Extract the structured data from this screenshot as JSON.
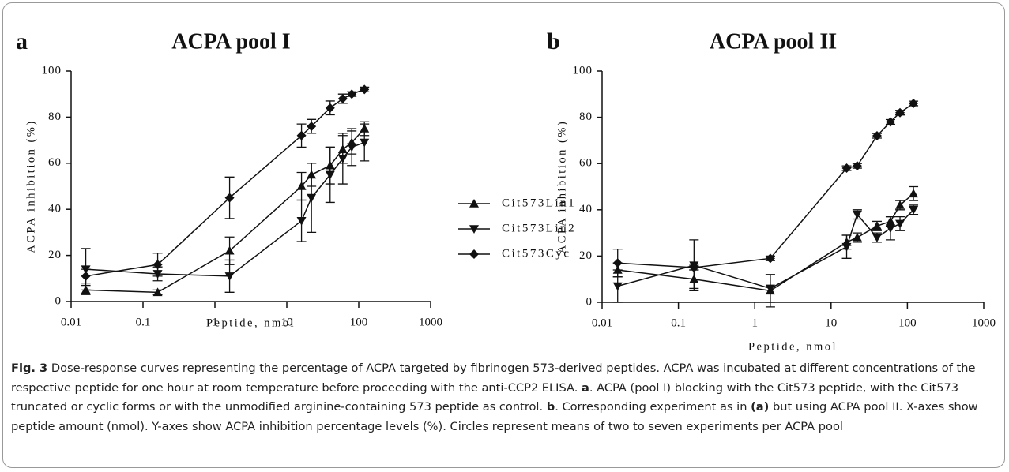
{
  "chart_data": [
    {
      "type": "line",
      "panel": "a",
      "title": "ACPA pool I",
      "x_label": "Peptide, nmol",
      "y_label": "ACPA inhibition (%)",
      "x": [
        0.016,
        0.16,
        1.6,
        16,
        22,
        40,
        60,
        80,
        120
      ],
      "xscale": "log",
      "xlim": [
        0.01,
        1000
      ],
      "xticks": [
        0.01,
        0.1,
        1,
        10,
        100,
        1000
      ],
      "ylim": [
        0,
        100
      ],
      "yticks": [
        0,
        20,
        40,
        60,
        80,
        100
      ],
      "legend": "right",
      "series": [
        {
          "name": "Cit573Lin1",
          "color": "#111111",
          "marker": "triangle-up",
          "values": [
            5,
            4,
            22,
            50,
            55,
            59,
            66,
            69,
            75
          ],
          "errors": [
            2,
            1,
            6,
            6,
            5,
            8,
            6,
            5,
            3
          ]
        },
        {
          "name": "Cit573Lin2",
          "color": "#111111",
          "marker": "triangle-down",
          "values": [
            14,
            12,
            11,
            35,
            45,
            55,
            62,
            67,
            69
          ],
          "errors": [
            9,
            3,
            7,
            9,
            15,
            12,
            11,
            8,
            8
          ]
        },
        {
          "name": "Cit573Cyc",
          "color": "#111111",
          "marker": "diamond",
          "values": [
            11,
            16,
            45,
            72,
            76,
            84,
            88,
            90,
            92
          ],
          "errors": [
            3,
            5,
            9,
            5,
            3,
            3,
            2,
            1,
            1
          ]
        }
      ]
    },
    {
      "type": "line",
      "panel": "b",
      "title": "ACPA pool II",
      "x_label": "Peptide, nmol",
      "y_label": "ACPA inhibition (%)",
      "x": [
        0.016,
        0.16,
        1.6,
        16,
        22,
        40,
        60,
        80,
        120
      ],
      "xscale": "log",
      "xlim": [
        0.01,
        1000
      ],
      "xticks": [
        0.01,
        0.1,
        1,
        10,
        100,
        1000
      ],
      "ylim": [
        0,
        100
      ],
      "yticks": [
        0,
        20,
        40,
        60,
        80,
        100
      ],
      "legend": false,
      "series": [
        {
          "name": "Cit573Lin1",
          "color": "#111111",
          "marker": "triangle-up",
          "values": [
            14,
            10,
            5,
            26,
            28,
            33,
            35,
            42,
            47
          ],
          "errors": [
            3,
            4,
            7,
            3,
            2,
            2,
            2,
            2,
            3
          ]
        },
        {
          "name": "Cit573Lin2",
          "color": "#111111",
          "marker": "triangle-down",
          "values": [
            7,
            16,
            6,
            24,
            38,
            28,
            32,
            34,
            40
          ],
          "errors": [
            7,
            11,
            6,
            5,
            2,
            2,
            5,
            3,
            2
          ]
        },
        {
          "name": "Cit573Cyc",
          "color": "#111111",
          "marker": "diamond",
          "values": [
            17,
            15,
            19,
            58,
            59,
            72,
            78,
            82,
            86
          ],
          "errors": [
            6,
            1,
            1,
            1,
            1,
            1,
            1,
            1,
            1
          ]
        }
      ]
    }
  ],
  "caption": [
    {
      "text": "Fig. 3",
      "bold": true
    },
    {
      "text": " Dose-response curves representing the percentage of ACPA targeted by fibrinogen 573-derived peptides. ACPA was incubated at different concentrations of the respective peptide for one hour at room temperature before proceeding with the anti-CCP2 ELISA. ",
      "bold": false
    },
    {
      "text": "a",
      "bold": true
    },
    {
      "text": ". ACPA (pool I) blocking with the Cit573 peptide, with the Cit573 truncated or cyclic forms or with the unmodified arginine-containing 573 peptide as control. ",
      "bold": false
    },
    {
      "text": "b",
      "bold": true
    },
    {
      "text": ". Corresponding experiment as in ",
      "bold": false
    },
    {
      "text": "(a)",
      "bold": true
    },
    {
      "text": " but using ACPA pool II. X-axes show peptide amount (nmol). Y-axes show ACPA inhibition percentage levels (%). Circles represent means of two to seven experiments per ACPA pool",
      "bold": false
    }
  ]
}
